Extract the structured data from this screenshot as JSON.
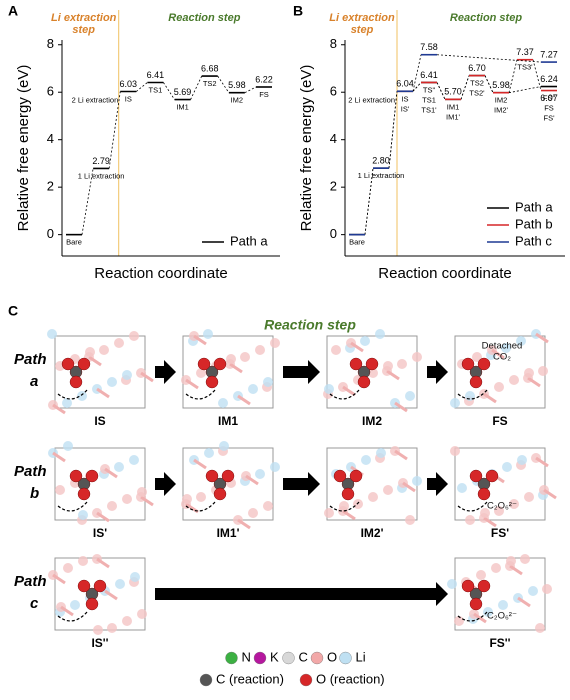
{
  "chart_data": [
    {
      "type": "energy",
      "panel_label": "A",
      "phase_labels": {
        "extraction": [
          "Li extraction",
          "step"
        ],
        "reaction": "Reaction step"
      },
      "ylabel": "Relative free energy (eV)",
      "xlabel": "Reaction coordinate",
      "categories": [
        [
          "Bare"
        ],
        [
          "1 Li extraction"
        ],
        [
          "IS"
        ],
        [
          "TS1"
        ],
        [
          "IM1"
        ],
        [
          "TS2"
        ],
        [
          "IM2"
        ],
        [
          "FS"
        ]
      ],
      "annotation": "2 Li extraction",
      "ylim": [
        -0.9,
        8.2
      ],
      "yticks": [
        0,
        2,
        4,
        6,
        8
      ],
      "series": [
        {
          "name": "Path a",
          "color": "#000000",
          "values": [
            0,
            2.79,
            6.03,
            6.41,
            5.69,
            6.68,
            5.98,
            6.22
          ],
          "value_labels": [
            null,
            "2.79",
            "6.03",
            "6.41",
            "5.69",
            "6.68",
            "5.98",
            "6.22"
          ]
        }
      ]
    },
    {
      "type": "energy",
      "panel_label": "B",
      "phase_labels": {
        "extraction": [
          "Li extraction",
          "step"
        ],
        "reaction": "Reaction step"
      },
      "ylabel": "Relative free energy (eV)",
      "xlabel": "Reaction coordinate",
      "categories": [
        [
          "Bare"
        ],
        [
          "1 Li extraction"
        ],
        [
          "IS",
          "IS'"
        ],
        [
          "TS\"",
          "TS1",
          "TS1'"
        ],
        [
          "IM1",
          "IM1'"
        ],
        [
          "TS2",
          "TS2'"
        ],
        [
          "IM2",
          "IM2'"
        ],
        [
          "TS3'"
        ],
        [
          "FS\"",
          "FS",
          "FS'"
        ]
      ],
      "annotation": "2 Li extraction",
      "ylim": [
        -0.9,
        8.2
      ],
      "yticks": [
        0,
        2,
        4,
        6,
        8
      ],
      "series": [
        {
          "name": "Path a",
          "color": "#000000",
          "values": [
            0,
            2.8,
            6.04,
            6.41,
            5.7,
            6.7,
            5.98,
            null,
            6.24
          ],
          "value_labels": [
            null,
            null,
            "6.04",
            "6.41",
            "5.70",
            null,
            "5.98",
            null,
            "6.24"
          ]
        },
        {
          "name": "Path b",
          "color": "#d62728",
          "values": [
            null,
            null,
            6.04,
            6.41,
            5.7,
            6.7,
            5.98,
            7.37,
            6.07
          ],
          "value_labels": [
            null,
            null,
            null,
            null,
            null,
            "6.70",
            null,
            "7.37",
            "6.07"
          ]
        },
        {
          "name": "Path c",
          "color": "#1f3a93",
          "values": [
            0,
            2.8,
            6.04,
            7.58,
            null,
            null,
            null,
            null,
            7.27
          ],
          "value_labels": [
            null,
            "2.80",
            null,
            "7.58",
            null,
            null,
            null,
            null,
            "7.27"
          ]
        }
      ]
    }
  ],
  "panel_c": {
    "label": "C",
    "title": "Reaction step",
    "rows": [
      {
        "path": [
          "Path",
          "a"
        ],
        "states": [
          "IS",
          "IM1",
          "IM2",
          "FS"
        ],
        "note": [
          "Detached",
          "CO₂"
        ]
      },
      {
        "path": [
          "Path",
          "b"
        ],
        "states": [
          "IS'",
          "IM1'",
          "IM2'",
          "FS'"
        ],
        "note": [
          "C₂O₆²⁻"
        ]
      },
      {
        "path": [
          "Path",
          "c"
        ],
        "states": [
          "IS''",
          "FS''"
        ],
        "note": [
          "C₂O₆²⁻"
        ]
      }
    ],
    "legend": [
      [
        "N",
        "K",
        "C",
        "O",
        "Li"
      ],
      [
        "C (reaction)",
        "O (reaction)"
      ]
    ]
  }
}
